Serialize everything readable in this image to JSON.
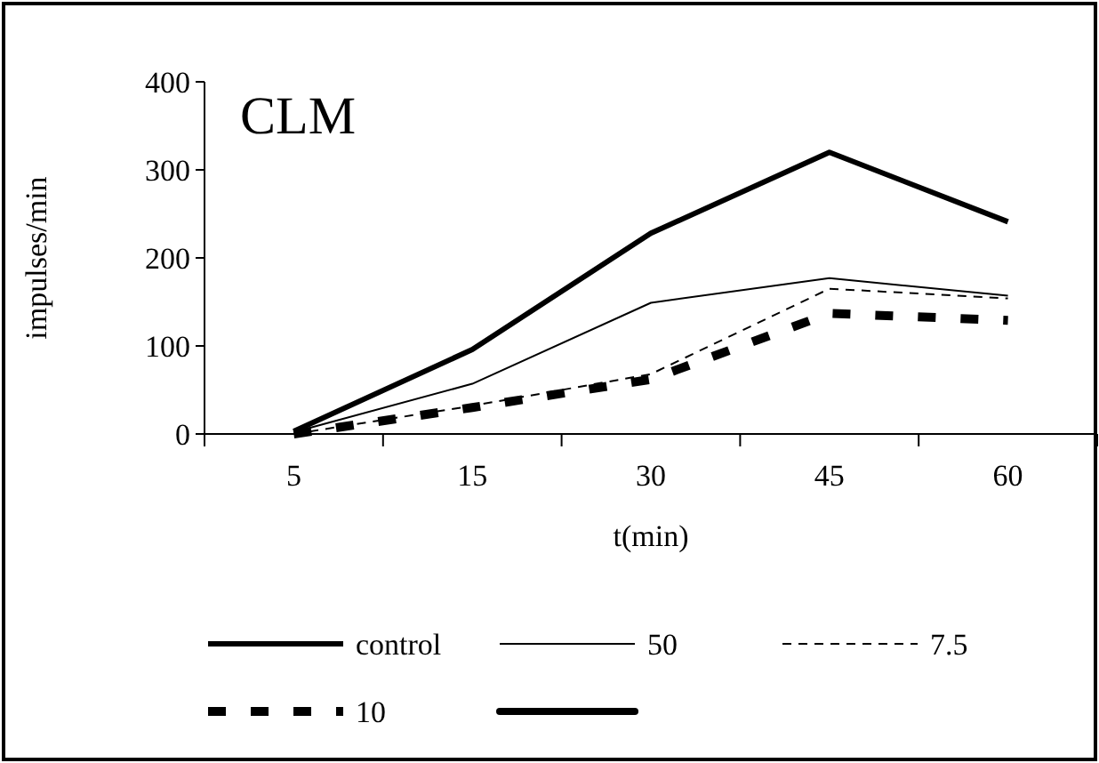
{
  "chart_data": {
    "type": "line",
    "title": "CLM",
    "xlabel": "t(min)",
    "ylabel": "impulses/min",
    "categories": [
      "5",
      "15",
      "30",
      "45",
      "60"
    ],
    "series": [
      {
        "name": "control",
        "color": "#000000",
        "line_style": "solid",
        "values": [
          3,
          96,
          228,
          320,
          241
        ]
      },
      {
        "name": "50",
        "color": "#000000",
        "line_style": "solid",
        "values": [
          2,
          57,
          149,
          177,
          157
        ]
      },
      {
        "name": "7.5",
        "color": "#000000",
        "line_style": "dashed",
        "values": [
          0,
          32,
          68,
          165,
          154
        ]
      },
      {
        "name": "10",
        "color": "#000000",
        "line_style": "dashed",
        "values": [
          0,
          30,
          62,
          137,
          129
        ]
      },
      {
        "color": "#000000",
        "line_style": "solid",
        "values": [
          null,
          null,
          null,
          null,
          null
        ]
      }
    ],
    "ylim": [
      0,
      400
    ],
    "yticks": [
      0,
      100,
      200,
      300,
      400
    ],
    "grid": false,
    "legend": "bottom"
  }
}
